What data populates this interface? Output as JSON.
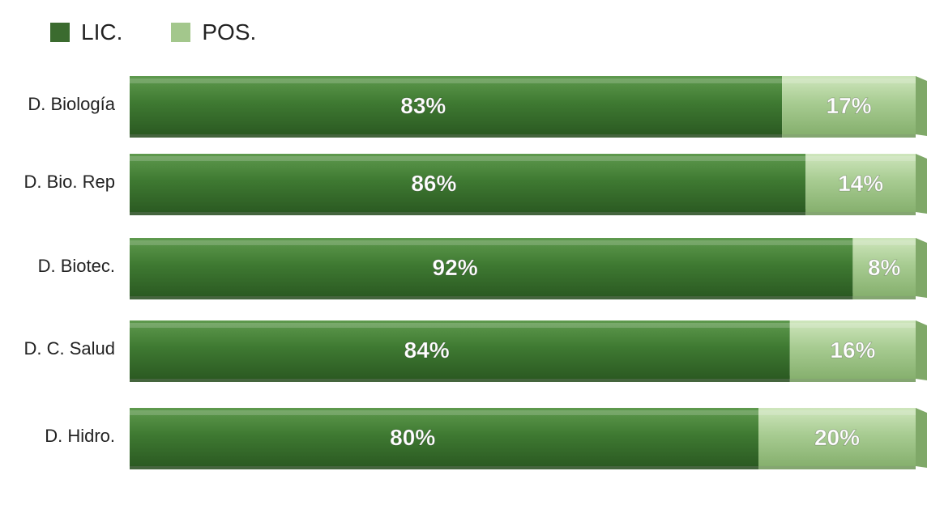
{
  "legend": [
    {
      "label": "LIC.",
      "color": "#3b6b2f"
    },
    {
      "label": "POS.",
      "color": "#a3c78c"
    }
  ],
  "chart_data": {
    "type": "bar",
    "orientation": "horizontal",
    "stacked": true,
    "percent": true,
    "categories": [
      "D. Biología",
      "D. Bio. Rep",
      "D. Biotec.",
      "D. C. Salud",
      "D. Hidro."
    ],
    "series": [
      {
        "name": "LIC.",
        "values": [
          83,
          86,
          92,
          84,
          80
        ],
        "labels": [
          "83%",
          "86%",
          "92%",
          "84%",
          "80%"
        ],
        "color": "#3b6b2f"
      },
      {
        "name": "POS.",
        "values": [
          17,
          14,
          8,
          16,
          20
        ],
        "labels": [
          "17%",
          "14%",
          "8%",
          "16%",
          "20%"
        ],
        "color": "#a3c78c"
      }
    ],
    "xlim": [
      0,
      100
    ],
    "legend_position": "top-left",
    "grid": false
  }
}
